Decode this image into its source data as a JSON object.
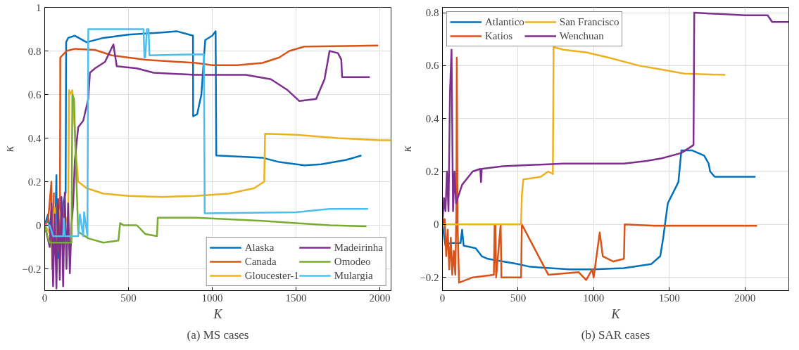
{
  "chart_data": [
    {
      "type": "line",
      "xlabel": "K",
      "ylabel": "κ",
      "annotations": [
        "(a) MS cases"
      ],
      "xlim": [
        0,
        2067
      ],
      "ylim": [
        -0.3,
        1
      ],
      "xticks": [
        0,
        500,
        1000,
        1500,
        2000
      ],
      "yticks": [
        -0.2,
        0,
        0.2,
        0.4,
        0.6,
        0.8,
        1
      ],
      "grid": true,
      "legend": "bottom right",
      "line_style": "solid",
      "marker": "none",
      "series": [
        {
          "name": "Alaska",
          "color": "#0072bd",
          "x": [
            0,
            20,
            35,
            50,
            60,
            70,
            72,
            75,
            80,
            90,
            100,
            110,
            125,
            128,
            140,
            180,
            250,
            350,
            500,
            600,
            700,
            790,
            885,
            886,
            910,
            935,
            958,
            1000,
            1020,
            1024,
            1026,
            1300,
            1400,
            1550,
            1650,
            1800,
            1890
          ],
          "values": [
            0,
            0.05,
            -0.05,
            0.03,
            -0.12,
            0.23,
            -0.1,
            0.05,
            -0.15,
            0.08,
            -0.05,
            0.1,
            0.15,
            0.84,
            0.86,
            0.87,
            0.84,
            0.86,
            0.875,
            0.88,
            0.885,
            0.89,
            0.87,
            0.5,
            0.51,
            0.6,
            0.85,
            0.87,
            0.89,
            0.32,
            0.32,
            0.31,
            0.29,
            0.275,
            0.28,
            0.3,
            0.32
          ]
        },
        {
          "name": "Canada",
          "color": "#d95319",
          "x": [
            0,
            20,
            40,
            45,
            55,
            65,
            75,
            85,
            91,
            93,
            130,
            180,
            300,
            400,
            600,
            900,
            1000,
            1150,
            1300,
            1400,
            1460,
            1550,
            1990
          ],
          "values": [
            0,
            0.02,
            0.2,
            -0.2,
            0.15,
            null,
            0.1,
            -0.05,
            0.0,
            0.77,
            0.8,
            0.81,
            0.805,
            0.78,
            0.76,
            0.745,
            0.735,
            0.735,
            0.745,
            0.77,
            0.8,
            0.82,
            0.825
          ]
        },
        {
          "name": "Gloucester-1",
          "color": "#edb120",
          "x": [
            0,
            40,
            60,
            75,
            85,
            100,
            120,
            140,
            145,
            150,
            165,
            175,
            185,
            200,
            250,
            350,
            500,
            700,
            900,
            1100,
            1250,
            1310,
            1315,
            1500,
            1750,
            2000,
            2067
          ],
          "values": [
            0,
            -0.05,
            0.08,
            -0.12,
            0.07,
            0.0,
            0.05,
            0.0,
            0.62,
            0.6,
            0.62,
            0.5,
            0.35,
            0.2,
            0.17,
            0.145,
            0.135,
            0.13,
            0.135,
            0.145,
            0.17,
            0.2,
            0.42,
            0.415,
            0.4,
            0.39,
            0.39
          ]
        },
        {
          "name": "Madeirinha",
          "color": "#7e2f8e",
          "x": [
            0,
            30,
            40,
            50,
            60,
            70,
            80,
            90,
            100,
            110,
            120,
            130,
            140,
            150,
            160,
            170,
            180,
            200,
            230,
            260,
            270,
            300,
            360,
            410,
            430,
            550,
            650,
            900,
            1200,
            1350,
            1450,
            1520,
            1620,
            1670,
            1700,
            1750,
            1770,
            1775,
            1940
          ],
          "values": [
            0,
            -0.1,
            0.1,
            -0.28,
            0.05,
            -0.29,
            0.12,
            -0.25,
            0.13,
            -0.28,
            0.15,
            -0.2,
            0.1,
            -0.22,
            0.0,
            0.1,
            0.3,
            0.45,
            0.48,
            0.58,
            0.7,
            0.72,
            0.75,
            0.83,
            0.73,
            0.72,
            0.7,
            0.69,
            0.69,
            0.67,
            0.62,
            0.57,
            0.58,
            0.67,
            0.8,
            0.79,
            0.76,
            0.68,
            0.68
          ]
        },
        {
          "name": "Omodeo",
          "color": "#77ac30",
          "x": [
            0,
            20,
            30,
            160,
            165,
            175,
            185,
            200,
            260,
            350,
            440,
            450,
            470,
            550,
            600,
            670,
            675,
            900,
            1300,
            1500,
            1700,
            1920
          ],
          "values": [
            0,
            -0.06,
            -0.08,
            -0.08,
            0.6,
            0.58,
            0.3,
            -0.03,
            -0.06,
            -0.08,
            -0.07,
            0.01,
            0.0,
            0.0,
            -0.04,
            -0.05,
            0.035,
            0.035,
            0.02,
            0.01,
            0.0,
            -0.005
          ]
        },
        {
          "name": "Mulargia",
          "color": "#4dbeee",
          "x": [
            0,
            30,
            50,
            110,
            115,
            120,
            200,
            210,
            230,
            235,
            255,
            260,
            262,
            590,
            595,
            600,
            610,
            620,
            625,
            950,
            955,
            1500,
            1700,
            1930
          ],
          "values": [
            0,
            0.0,
            -0.05,
            -0.05,
            0.03,
            -0.05,
            -0.05,
            0.05,
            -0.05,
            0.06,
            -0.05,
            0.9,
            0.9,
            0.9,
            0.77,
            0.77,
            0.9,
            0.9,
            0.78,
            0.785,
            0.055,
            0.06,
            0.075,
            0.075
          ]
        }
      ]
    },
    {
      "type": "line",
      "xlabel": "K",
      "ylabel": "κ",
      "annotations": [
        "(b) SAR cases"
      ],
      "xlim": [
        0,
        2290
      ],
      "ylim": [
        -0.25,
        0.82
      ],
      "xticks": [
        0,
        500,
        1000,
        1500,
        2000
      ],
      "yticks": [
        -0.2,
        0,
        0.2,
        0.4,
        0.6,
        0.8
      ],
      "grid": true,
      "legend": "top left",
      "line_style": "solid",
      "marker": "none",
      "series": [
        {
          "name": "Atlantico",
          "color": "#0072bd",
          "x": [
            0,
            20,
            50,
            120,
            130,
            140,
            220,
            260,
            300,
            400,
            500,
            580,
            840,
            1000,
            1200,
            1380,
            1440,
            1460,
            1490,
            1560,
            1580,
            1650,
            1730,
            1760,
            1770,
            1800,
            2070
          ],
          "values": [
            0,
            -0.08,
            -0.07,
            -0.07,
            -0.02,
            -0.08,
            -0.09,
            -0.12,
            -0.13,
            -0.14,
            -0.15,
            -0.16,
            -0.17,
            -0.17,
            -0.165,
            -0.15,
            -0.12,
            -0.05,
            0.08,
            0.16,
            0.28,
            0.28,
            0.26,
            0.23,
            0.2,
            0.18,
            0.18
          ]
        },
        {
          "name": "Katios",
          "color": "#d95319",
          "x": [
            0,
            15,
            25,
            35,
            45,
            55,
            65,
            75,
            85,
            92,
            95,
            100,
            110,
            200,
            340,
            345,
            350,
            355,
            385,
            390,
            520,
            525,
            700,
            900,
            950,
            990,
            1000,
            1040,
            1060,
            1130,
            1200,
            1205,
            1400,
            2080
          ],
          "values": [
            0,
            0.02,
            -0.12,
            -0.02,
            -0.17,
            -0.05,
            -0.19,
            -0.1,
            -0.19,
            0.05,
            0.63,
            0.0,
            -0.22,
            -0.2,
            -0.19,
            0,
            0,
            -0.2,
            0,
            -0.2,
            -0.2,
            0,
            -0.19,
            -0.18,
            -0.21,
            -0.17,
            -0.2,
            -0.03,
            -0.12,
            -0.14,
            -0.13,
            0,
            -0.005,
            -0.005
          ]
        },
        {
          "name": "San Francisco",
          "color": "#edb120",
          "x": [
            0,
            520,
            525,
            535,
            650,
            700,
            730,
            735,
            800,
            950,
            1100,
            1300,
            1450,
            1600,
            1870
          ],
          "values": [
            0,
            0,
            0.11,
            0.17,
            0.18,
            0.2,
            0.19,
            0.67,
            0.66,
            0.65,
            0.63,
            0.6,
            0.585,
            0.57,
            0.565
          ]
        },
        {
          "name": "Wenchuan",
          "color": "#7e2f8e",
          "x": [
            0,
            10,
            20,
            30,
            40,
            50,
            60,
            70,
            80,
            90,
            130,
            200,
            250,
            255,
            260,
            400,
            800,
            1200,
            1350,
            1450,
            1580,
            1660,
            1665,
            2000,
            2150,
            2180,
            2290
          ],
          "values": [
            0,
            0.1,
            0.05,
            0.2,
            0.05,
            0.5,
            0.66,
            0.05,
            0.2,
            0.08,
            0.15,
            0.2,
            0.21,
            0.16,
            0.21,
            0.22,
            0.23,
            0.23,
            0.24,
            0.25,
            0.27,
            0.3,
            0.8,
            0.79,
            0.79,
            0.765,
            0.765
          ]
        }
      ]
    }
  ]
}
